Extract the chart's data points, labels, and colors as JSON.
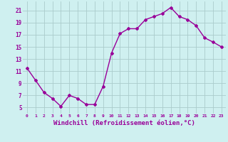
{
  "x": [
    0,
    1,
    2,
    3,
    4,
    5,
    6,
    7,
    8,
    9,
    10,
    11,
    12,
    13,
    14,
    15,
    16,
    17,
    18,
    19,
    20,
    21,
    22,
    23
  ],
  "y": [
    11.5,
    9.5,
    7.5,
    6.5,
    5.2,
    7.0,
    6.5,
    5.5,
    5.5,
    8.5,
    14.0,
    17.2,
    18.0,
    18.0,
    19.5,
    20.0,
    20.5,
    21.5,
    20.0,
    19.5,
    18.5,
    16.5,
    15.8,
    15.0
  ],
  "line_color": "#990099",
  "marker": "D",
  "marker_size": 2,
  "linewidth": 1.0,
  "bg_color": "#cff0f0",
  "grid_color": "#aacccc",
  "xlabel": "Windchill (Refroidissement éolien,°C)",
  "xlabel_fontsize": 6.5,
  "tick_color": "#990099",
  "yticks": [
    5,
    7,
    9,
    11,
    13,
    15,
    17,
    19,
    21
  ],
  "xticks": [
    0,
    1,
    2,
    3,
    4,
    5,
    6,
    7,
    8,
    9,
    10,
    11,
    12,
    13,
    14,
    15,
    16,
    17,
    18,
    19,
    20,
    21,
    22,
    23
  ],
  "ylim": [
    4.0,
    22.5
  ],
  "xlim": [
    -0.5,
    23.5
  ]
}
